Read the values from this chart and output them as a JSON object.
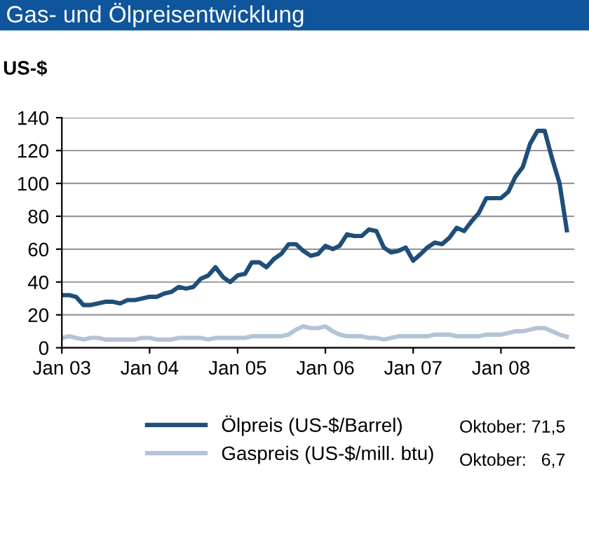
{
  "chart_data": {
    "type": "line",
    "title": "Gas- und Ölpreisentwicklung",
    "ylabel": "US-$",
    "x": [
      "2003-01",
      "2003-02",
      "2003-03",
      "2003-04",
      "2003-05",
      "2003-06",
      "2003-07",
      "2003-08",
      "2003-09",
      "2003-10",
      "2003-11",
      "2003-12",
      "2004-01",
      "2004-02",
      "2004-03",
      "2004-04",
      "2004-05",
      "2004-06",
      "2004-07",
      "2004-08",
      "2004-09",
      "2004-10",
      "2004-11",
      "2004-12",
      "2005-01",
      "2005-02",
      "2005-03",
      "2005-04",
      "2005-05",
      "2005-06",
      "2005-07",
      "2005-08",
      "2005-09",
      "2005-10",
      "2005-11",
      "2005-12",
      "2006-01",
      "2006-02",
      "2006-03",
      "2006-04",
      "2006-05",
      "2006-06",
      "2006-07",
      "2006-08",
      "2006-09",
      "2006-10",
      "2006-11",
      "2006-12",
      "2007-01",
      "2007-02",
      "2007-03",
      "2007-04",
      "2007-05",
      "2007-06",
      "2007-07",
      "2007-08",
      "2007-09",
      "2007-10",
      "2007-11",
      "2007-12",
      "2008-01",
      "2008-02",
      "2008-03",
      "2008-04",
      "2008-05",
      "2008-06",
      "2008-07",
      "2008-08",
      "2008-09",
      "2008-10"
    ],
    "series": [
      {
        "name": "Ölpreis (US-$/Barrel)",
        "color": "#1f4e79",
        "values": [
          32,
          32,
          31,
          26,
          26,
          27,
          28,
          28,
          27,
          29,
          29,
          30,
          31,
          31,
          33,
          34,
          37,
          36,
          37,
          42,
          44,
          49,
          43,
          40,
          44,
          45,
          52,
          52,
          49,
          54,
          57,
          63,
          63,
          59,
          56,
          57,
          62,
          60,
          62,
          69,
          68,
          68,
          72,
          71,
          61,
          58,
          59,
          61,
          53,
          57,
          61,
          64,
          63,
          67,
          73,
          71,
          77,
          82,
          91,
          91,
          91,
          95,
          104,
          110,
          124,
          132,
          132,
          115,
          100,
          71.5
        ]
      },
      {
        "name": "Gaspreis (US-$/mill. btu)",
        "color": "#b4c4d6",
        "values": [
          6,
          7,
          6,
          5,
          6,
          6,
          5,
          5,
          5,
          5,
          5,
          6,
          6,
          5,
          5,
          5,
          6,
          6,
          6,
          6,
          5,
          6,
          6,
          6,
          6,
          6,
          7,
          7,
          7,
          7,
          7,
          8,
          11,
          13,
          12,
          12,
          13,
          10,
          8,
          7,
          7,
          7,
          6,
          6,
          5,
          6,
          7,
          7,
          7,
          7,
          7,
          8,
          8,
          8,
          7,
          7,
          7,
          7,
          8,
          8,
          8,
          9,
          10,
          10,
          11,
          12,
          12,
          10,
          8,
          6.7
        ]
      }
    ],
    "xlim": [
      "2003-01",
      "2008-11"
    ],
    "ylim": [
      0,
      140
    ],
    "yticks": [
      0,
      20,
      40,
      60,
      80,
      100,
      120,
      140
    ],
    "xticks": [
      {
        "value": "2003-01",
        "label": "Jan 03"
      },
      {
        "value": "2004-01",
        "label": "Jan 04"
      },
      {
        "value": "2005-01",
        "label": "Jan 05"
      },
      {
        "value": "2006-01",
        "label": "Jan 06"
      },
      {
        "value": "2007-01",
        "label": "Jan 07"
      },
      {
        "value": "2008-01",
        "label": "Jan 08"
      }
    ],
    "grid": "y",
    "legend": "bottom",
    "marker": "none",
    "line_style": "solid",
    "annotations": [
      "Oktober: 71,5",
      "Oktober:   6,7"
    ]
  }
}
